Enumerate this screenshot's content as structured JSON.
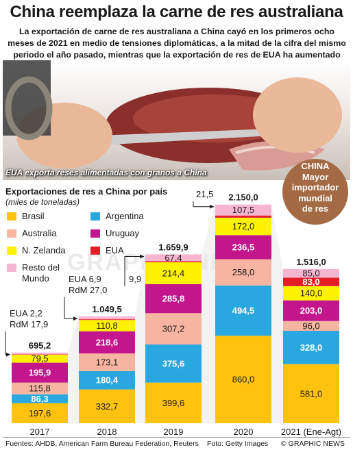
{
  "title": "China reemplaza la carne de res australiana",
  "subtitle": "La exportación de carne de res australiana a China cayó en los primeros ocho meses de 2021 en medio de tensiones diplomáticas, a la mitad de la cifra del mismo periodo el año pasado, mientras que la exportación de res de EUA ha aumentado",
  "photo_caption": "EUA exporta reses alimentadas con granos a China",
  "badge": [
    "CHINA",
    "Mayor",
    "importador",
    "mundial",
    "de res"
  ],
  "colors": {
    "Brasil": "#ffc20e",
    "Australia": "#f7b4a0",
    "N. Zelanda": "#fff200",
    "Resto del Mundo": "#f6b6d2",
    "Argentina": "#29a8e0",
    "Uruguay": "#c4168c",
    "EUA": "#e41e26"
  },
  "footer": {
    "sources": "Fuentes: AHDB, American Farm Bureau Federation, Reuters",
    "photo": "Foto: Getty Images",
    "brand": "© GRAPHIC NEWS"
  },
  "watermark": "GRAPHIC NEWS",
  "chart_data": {
    "type": "bar",
    "stacked": true,
    "title": "Exportaciones de res a China por país",
    "subtitle": "(miles de toneladas)",
    "categories": [
      "2017",
      "2018",
      "2019",
      "2020",
      "2021 (Ene-Agt)"
    ],
    "totals": [
      "695,2",
      "1.049,5",
      "1.659,9",
      "2.150,0",
      "1.516,0"
    ],
    "total_values": [
      695.2,
      1049.5,
      1659.9,
      2150.0,
      1516.0
    ],
    "legend": [
      {
        "key": "Brasil",
        "label": "Brasil"
      },
      {
        "key": "Argentina",
        "label": "Argentina"
      },
      {
        "key": "Australia",
        "label": "Australia"
      },
      {
        "key": "Uruguay",
        "label": "Uruguay"
      },
      {
        "key": "N. Zelanda",
        "label": "N. Zelanda"
      },
      {
        "key": "EUA",
        "label": "EUA"
      },
      {
        "key": "Resto del Mundo",
        "label": "Resto del Mundo"
      }
    ],
    "series": [
      {
        "name": "Brasil",
        "values": [
          197.6,
          332.7,
          399.6,
          860.0,
          581.0
        ],
        "labels": [
          "197,6",
          "332,7",
          "399,6",
          "860,0",
          "581,0"
        ]
      },
      {
        "name": "Argentina",
        "values": [
          86.3,
          180.4,
          375.6,
          494.5,
          328.0
        ],
        "labels": [
          "86,3",
          "180,4",
          "375,6",
          "494,5",
          "328,0"
        ]
      },
      {
        "name": "Australia",
        "values": [
          115.8,
          173.1,
          307.2,
          258.0,
          96.0
        ],
        "labels": [
          "115,8",
          "173,1",
          "307,2",
          "258,0",
          "96,0"
        ]
      },
      {
        "name": "Uruguay",
        "values": [
          195.9,
          218.6,
          285.8,
          236.5,
          203.0
        ],
        "labels": [
          "195,9",
          "218,6",
          "285,8",
          "236,5",
          "203,0"
        ]
      },
      {
        "name": "N. Zelanda",
        "values": [
          79.5,
          110.8,
          214.4,
          172.0,
          140.0
        ],
        "labels": [
          "79,5",
          "110,8",
          "214,4",
          "172,0",
          "140,0"
        ]
      },
      {
        "name": "EUA",
        "values": [
          2.2,
          6.9,
          9.9,
          21.5,
          83.0
        ],
        "labels": [
          "",
          "",
          "",
          "",
          "83,0"
        ]
      },
      {
        "name": "Resto del Mundo",
        "values": [
          17.9,
          27.0,
          67.4,
          107.5,
          85.0
        ],
        "labels": [
          "",
          "",
          "67,4",
          "107,5",
          "85,0"
        ]
      }
    ],
    "callouts": [
      {
        "category": "2017",
        "lines": [
          "EUA    2,2",
          "RdM  17,9"
        ]
      },
      {
        "category": "2018",
        "lines": [
          "EUA    6,9",
          "RdM  27,0"
        ]
      },
      {
        "category": "2019",
        "lines": [
          "9,9"
        ]
      },
      {
        "category": "2020",
        "lines": [
          "21,5"
        ]
      }
    ],
    "ylim": [
      0,
      2300
    ],
    "grid": false
  }
}
